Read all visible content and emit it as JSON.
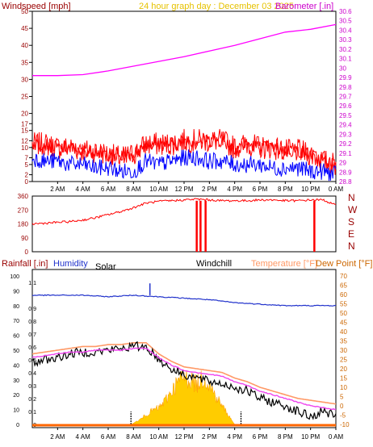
{
  "header": {
    "left_label": "Windspeed [mph]",
    "title": "24 hour graph day : December 03 2025",
    "right_label": "Barometer [.in]"
  },
  "time_ticks": [
    "2 AM",
    "4 AM",
    "6 AM",
    "8 AM",
    "10 AM",
    "12 PM",
    "2 PM",
    "4 PM",
    "6 PM",
    "8 PM",
    "10 PM",
    "0 AM"
  ],
  "wind_panel": {
    "y_ticks": [
      "0",
      "2",
      "5",
      "7",
      "10",
      "12",
      "15",
      "17",
      "20",
      "25",
      "30",
      "35",
      "40",
      "45",
      "50"
    ],
    "baro_ticks": [
      "28.8",
      "28.9",
      "29",
      "29.1",
      "29.2",
      "29.3",
      "29.4",
      "29.5",
      "29.6",
      "29.7",
      "29.8",
      "29.9",
      "30",
      "30.1",
      "30.2",
      "30.3",
      "30.4",
      "30.5",
      "30.6"
    ]
  },
  "dir_panel": {
    "y_ticks": [
      "0",
      "90",
      "180",
      "270",
      "360"
    ],
    "compass": [
      "N",
      "W",
      "S",
      "E",
      "N"
    ]
  },
  "bottom_panel": {
    "labels": {
      "rainfall": "Rainfall [.in]",
      "humidity": "Humidity",
      "solar": "Solar",
      "windchill": "Windchill",
      "temperature": "Temperature [°F]",
      "dewpoint": "Dew Point [°F]"
    },
    "rain_ticks": [
      "0",
      "0.1",
      "0.2",
      "0.3",
      "0.4",
      "0.5",
      "0.6",
      "0.7",
      "0.8",
      "0.9",
      "1",
      "1.1"
    ],
    "hum_ticks": [
      "0",
      "10",
      "20",
      "30",
      "40",
      "50",
      "60",
      "70",
      "80",
      "90",
      "100"
    ],
    "temp_ticks": [
      "-10",
      "-5",
      "0",
      "5",
      "10",
      "15",
      "20",
      "25",
      "30",
      "35",
      "40",
      "45",
      "50",
      "55",
      "60",
      "65",
      "70"
    ]
  },
  "colors": {
    "windspeed": "#ff0000",
    "gust_alt": "#0000ff",
    "barometer": "#ff00ff",
    "direction": "#ff0000",
    "humidity": "#2233cc",
    "temperature": "#ff9966",
    "dewpoint": "#ee44ee",
    "windchill": "#000000",
    "solar": "#ffcc00",
    "axis_left": "#990000",
    "axis_right_baro": "#cc00cc",
    "axis_right_temp": "#cc6600"
  },
  "chart_data": [
    {
      "type": "line",
      "title": "24 hour graph day : December 03 2025",
      "x_unit": "hour",
      "xlim": [
        0,
        24
      ],
      "series": [
        {
          "name": "Windspeed [mph]",
          "axis": "left",
          "ylim": [
            0,
            50
          ],
          "x": [
            0,
            1,
            2,
            3,
            4,
            5,
            6,
            7,
            8,
            9,
            10,
            11,
            12,
            13,
            14,
            15,
            16,
            17,
            18,
            19,
            20,
            21,
            22,
            23,
            24
          ],
          "values": [
            11,
            11,
            10,
            10,
            9,
            9,
            8,
            7,
            8,
            11,
            11,
            11,
            12,
            12,
            12,
            12,
            10,
            11,
            10,
            10,
            9,
            9,
            8,
            6,
            5
          ]
        },
        {
          "name": "Windspeed low",
          "axis": "left",
          "ylim": [
            0,
            50
          ],
          "x": [
            0,
            1,
            2,
            3,
            4,
            5,
            6,
            7,
            8,
            9,
            10,
            11,
            12,
            13,
            14,
            15,
            16,
            17,
            18,
            19,
            20,
            21,
            22,
            23,
            24
          ],
          "values": [
            7,
            6,
            6,
            5,
            5,
            4,
            4,
            3,
            3,
            6,
            5,
            6,
            7,
            7,
            6,
            6,
            5,
            5,
            5,
            4,
            4,
            4,
            3,
            3,
            2
          ]
        },
        {
          "name": "Barometer [.in]",
          "axis": "right",
          "ylim": [
            28.8,
            30.6
          ],
          "x": [
            0,
            2,
            4,
            6,
            8,
            10,
            12,
            14,
            16,
            18,
            20,
            22,
            24
          ],
          "values": [
            29.92,
            29.92,
            29.93,
            29.97,
            30.02,
            30.07,
            30.12,
            30.18,
            30.24,
            30.31,
            30.38,
            30.41,
            30.46
          ]
        }
      ]
    },
    {
      "type": "line",
      "name": "Wind direction",
      "ylim": [
        0,
        360
      ],
      "x": [
        0,
        1,
        2,
        3,
        4,
        5,
        6,
        7,
        8,
        9,
        10,
        11,
        12,
        13,
        14,
        15,
        16,
        17,
        18,
        19,
        20,
        21,
        22,
        23,
        24
      ],
      "values": [
        180,
        185,
        190,
        195,
        205,
        220,
        240,
        260,
        285,
        315,
        325,
        330,
        335,
        340,
        335,
        330,
        330,
        330,
        335,
        335,
        330,
        330,
        335,
        335,
        300
      ]
    },
    {
      "type": "line",
      "xlim": [
        0,
        24
      ],
      "series": [
        {
          "name": "Temperature [°F]",
          "axis": "right",
          "ylim": [
            -10,
            70
          ],
          "x": [
            0,
            1,
            2,
            3,
            4,
            5,
            6,
            7,
            8,
            9,
            10,
            11,
            12,
            13,
            14,
            15,
            16,
            17,
            18,
            19,
            20,
            21,
            22,
            23,
            24
          ],
          "values": [
            28,
            29,
            30,
            31,
            32,
            32,
            33,
            33,
            34,
            34,
            28,
            24,
            21,
            20,
            19,
            18,
            15,
            13,
            10,
            8,
            6,
            4,
            3,
            2,
            1
          ]
        },
        {
          "name": "Dew Point [°F]",
          "axis": "right",
          "ylim": [
            -10,
            70
          ],
          "x": [
            0,
            1,
            2,
            3,
            4,
            5,
            6,
            7,
            8,
            9,
            10,
            11,
            12,
            13,
            14,
            15,
            16,
            17,
            18,
            19,
            20,
            21,
            22,
            23,
            24
          ],
          "values": [
            26,
            27,
            28,
            29,
            29,
            30,
            30,
            30,
            31,
            31,
            26,
            22,
            19,
            18,
            17,
            16,
            13,
            11,
            8,
            6,
            4,
            2,
            0,
            -1,
            -2
          ]
        },
        {
          "name": "Windchill",
          "axis": "right",
          "ylim": [
            -10,
            70
          ],
          "x": [
            0,
            1,
            2,
            3,
            4,
            5,
            6,
            7,
            8,
            9,
            10,
            11,
            12,
            13,
            14,
            15,
            16,
            17,
            18,
            19,
            20,
            21,
            22,
            23,
            24
          ],
          "values": [
            23,
            25,
            26,
            28,
            29,
            29,
            30,
            31,
            32,
            32,
            25,
            20,
            17,
            15,
            13,
            12,
            10,
            8,
            4,
            2,
            0,
            -3,
            -6,
            -3,
            -5
          ]
        },
        {
          "name": "Humidity",
          "axis": "humidity",
          "ylim": [
            0,
            100
          ],
          "x": [
            0,
            2,
            4,
            6,
            8,
            10,
            12,
            14,
            16,
            18,
            20,
            22,
            24
          ],
          "values": [
            87,
            87,
            87,
            86,
            87,
            86,
            85,
            84,
            82,
            81,
            80,
            80,
            80
          ]
        },
        {
          "name": "Solar",
          "axis": "relative",
          "x": [
            7.8,
            8.5,
            9,
            9.5,
            10,
            10.5,
            11,
            11.5,
            12,
            12.5,
            13,
            13.5,
            14,
            14.5,
            15,
            15.5,
            16
          ],
          "values": [
            0,
            2,
            4,
            6,
            7,
            10,
            14,
            18,
            20,
            19,
            17,
            20,
            17,
            12,
            8,
            4,
            0
          ]
        },
        {
          "name": "Rainfall [.in]",
          "axis": "left",
          "ylim": [
            0,
            1.15
          ],
          "x": [
            0,
            24
          ],
          "values": [
            0,
            0
          ]
        }
      ]
    }
  ]
}
